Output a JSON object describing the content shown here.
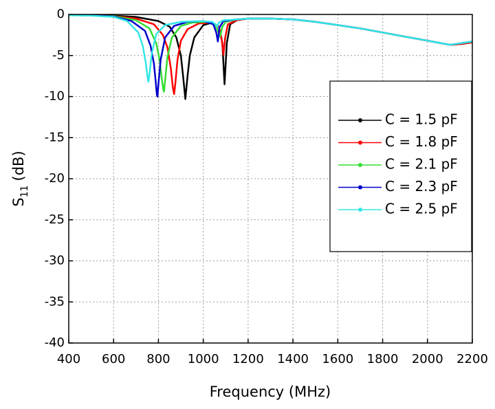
{
  "chart_data": {
    "type": "line",
    "xlabel": "Frequency (MHz)",
    "ylabel": {
      "symbol": "S",
      "subscript": "11",
      "unit": "(dB)"
    },
    "xlim": [
      400,
      2200
    ],
    "xticks": [
      400,
      600,
      800,
      1000,
      1200,
      1400,
      1600,
      1800,
      2000,
      2200
    ],
    "ylim": [
      -40,
      0
    ],
    "yticks": [
      0,
      -5,
      -10,
      -15,
      -20,
      -25,
      -30,
      -35,
      -40
    ],
    "grid": true,
    "legend": "right",
    "series": [
      {
        "name": "C = 1.5 pF",
        "color": "#000000",
        "x": [
          400,
          500,
          600,
          700,
          800,
          850,
          880,
          900,
          910,
          920,
          930,
          940,
          960,
          1000,
          1040,
          1070,
          1085,
          1095,
          1105,
          1120,
          1150,
          1200,
          1300,
          1400,
          1500,
          1600,
          1700,
          1800,
          1900,
          2000,
          2100,
          2150,
          2200
        ],
        "values": [
          -0.1,
          -0.1,
          -0.15,
          -0.3,
          -0.8,
          -1.5,
          -2.8,
          -5,
          -7.5,
          -10.3,
          -7.5,
          -5,
          -2.8,
          -1.3,
          -1,
          -1.5,
          -3.5,
          -8.5,
          -3.5,
          -1.2,
          -0.7,
          -0.5,
          -0.5,
          -0.6,
          -0.9,
          -1.3,
          -1.7,
          -2.2,
          -2.7,
          -3.2,
          -3.7,
          -3.6,
          -3.4
        ]
      },
      {
        "name": "C = 1.8 pF",
        "color": "#ff0000",
        "x": [
          400,
          500,
          600,
          700,
          780,
          820,
          840,
          855,
          865,
          870,
          875,
          885,
          900,
          930,
          980,
          1040,
          1070,
          1082,
          1090,
          1098,
          1110,
          1150,
          1200,
          1300,
          1400,
          1500,
          1600,
          1700,
          1800,
          1900,
          2000,
          2100,
          2150,
          2200
        ],
        "values": [
          -0.1,
          -0.1,
          -0.2,
          -0.5,
          -1.2,
          -2.5,
          -4,
          -6.5,
          -9,
          -9.7,
          -8.5,
          -5.5,
          -3.2,
          -1.8,
          -1.1,
          -1,
          -1.5,
          -3,
          -4.9,
          -2.8,
          -1.2,
          -0.7,
          -0.5,
          -0.5,
          -0.6,
          -0.9,
          -1.3,
          -1.7,
          -2.2,
          -2.7,
          -3.2,
          -3.7,
          -3.6,
          -3.4
        ]
      },
      {
        "name": "C = 2.1 pF",
        "color": "#33dd33",
        "x": [
          400,
          500,
          600,
          700,
          760,
          790,
          805,
          815,
          822,
          825,
          830,
          840,
          860,
          900,
          950,
          1020,
          1055,
          1068,
          1075,
          1085,
          1100,
          1150,
          1200,
          1300,
          1400,
          1500,
          1600,
          1700,
          1800,
          1900,
          2000,
          2100,
          2150,
          2200
        ],
        "values": [
          -0.1,
          -0.1,
          -0.2,
          -0.7,
          -1.7,
          -3.5,
          -5.5,
          -7.8,
          -9.2,
          -9.4,
          -8,
          -5.2,
          -2.8,
          -1.4,
          -1,
          -0.9,
          -1.3,
          -2.2,
          -2.7,
          -1.5,
          -0.9,
          -0.6,
          -0.5,
          -0.5,
          -0.6,
          -0.9,
          -1.3,
          -1.7,
          -2.2,
          -2.7,
          -3.2,
          -3.7,
          -3.5,
          -3.3
        ]
      },
      {
        "name": "C = 2.3 pF",
        "color": "#0000cc",
        "x": [
          400,
          500,
          600,
          680,
          740,
          765,
          780,
          788,
          793,
          796,
          800,
          810,
          830,
          870,
          930,
          1000,
          1045,
          1058,
          1065,
          1072,
          1090,
          1150,
          1200,
          1300,
          1400,
          1500,
          1600,
          1700,
          1800,
          1900,
          2000,
          2100,
          2150,
          2200
        ],
        "values": [
          -0.1,
          -0.1,
          -0.25,
          -0.8,
          -2,
          -3.8,
          -6,
          -8.2,
          -9.8,
          -10,
          -8.5,
          -5.5,
          -2.8,
          -1.4,
          -0.9,
          -0.8,
          -1.2,
          -2.2,
          -3.3,
          -1.6,
          -0.8,
          -0.6,
          -0.5,
          -0.5,
          -0.6,
          -0.9,
          -1.3,
          -1.7,
          -2.2,
          -2.7,
          -3.2,
          -3.7,
          -3.5,
          -3.3
        ]
      },
      {
        "name": "C = 2.5 pF",
        "color": "#33e6e6",
        "x": [
          400,
          500,
          600,
          660,
          710,
          730,
          743,
          750,
          755,
          760,
          770,
          790,
          830,
          900,
          980,
          1040,
          1055,
          1062,
          1070,
          1090,
          1150,
          1200,
          1300,
          1400,
          1500,
          1600,
          1700,
          1800,
          1900,
          2000,
          2100,
          2150,
          2200
        ],
        "values": [
          -0.1,
          -0.15,
          -0.3,
          -0.8,
          -2.2,
          -3.8,
          -5.8,
          -7.3,
          -8.2,
          -7.3,
          -4.8,
          -2.4,
          -1.3,
          -0.9,
          -0.8,
          -0.9,
          -1.2,
          -1.5,
          -1,
          -0.7,
          -0.6,
          -0.5,
          -0.5,
          -0.6,
          -0.9,
          -1.3,
          -1.7,
          -2.2,
          -2.7,
          -3.2,
          -3.7,
          -3.5,
          -3.3
        ]
      }
    ]
  }
}
